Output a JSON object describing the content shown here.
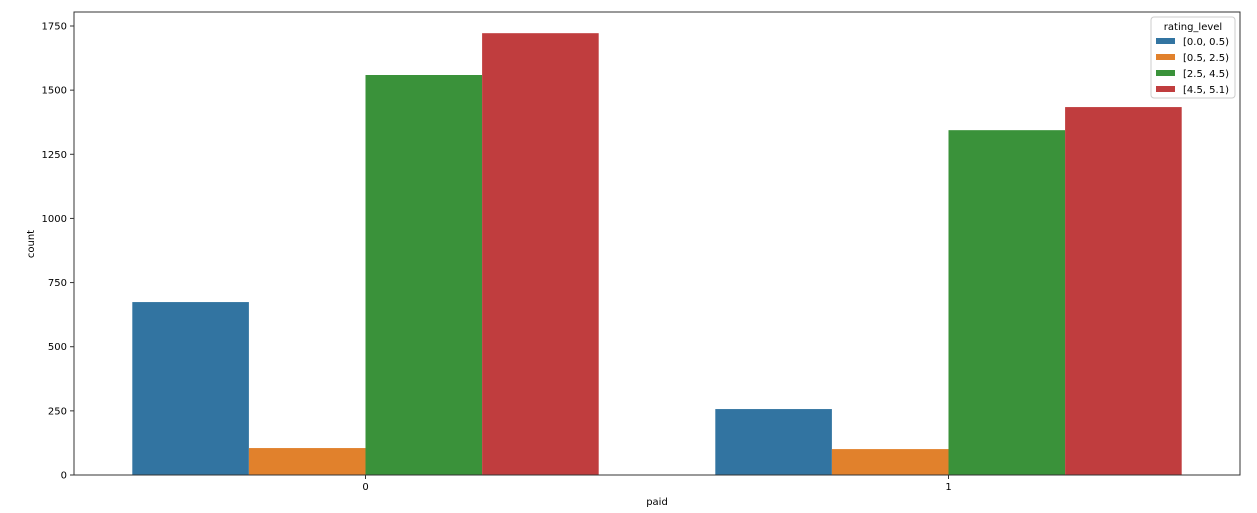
{
  "chart_data": {
    "type": "bar",
    "title": "",
    "xlabel": "paid",
    "ylabel": "count",
    "categories": [
      "0",
      "1"
    ],
    "ylim": [
      0,
      1800
    ],
    "yticks": [
      0,
      250,
      500,
      750,
      1000,
      1250,
      1500,
      1750
    ],
    "grid": false,
    "legend": {
      "title": "rating_level",
      "placement": "top-right"
    },
    "series": [
      {
        "name": "[0.0, 0.5)",
        "color": "#3274a1",
        "values": [
          674,
          257
        ]
      },
      {
        "name": "[0.5, 2.5)",
        "color": "#e1812c",
        "values": [
          105,
          101
        ]
      },
      {
        "name": "[2.5, 4.5)",
        "color": "#3a923a",
        "values": [
          1559,
          1344
        ]
      },
      {
        "name": "[4.5, 5.1)",
        "color": "#c03d3e",
        "values": [
          1722,
          1434
        ]
      }
    ]
  }
}
